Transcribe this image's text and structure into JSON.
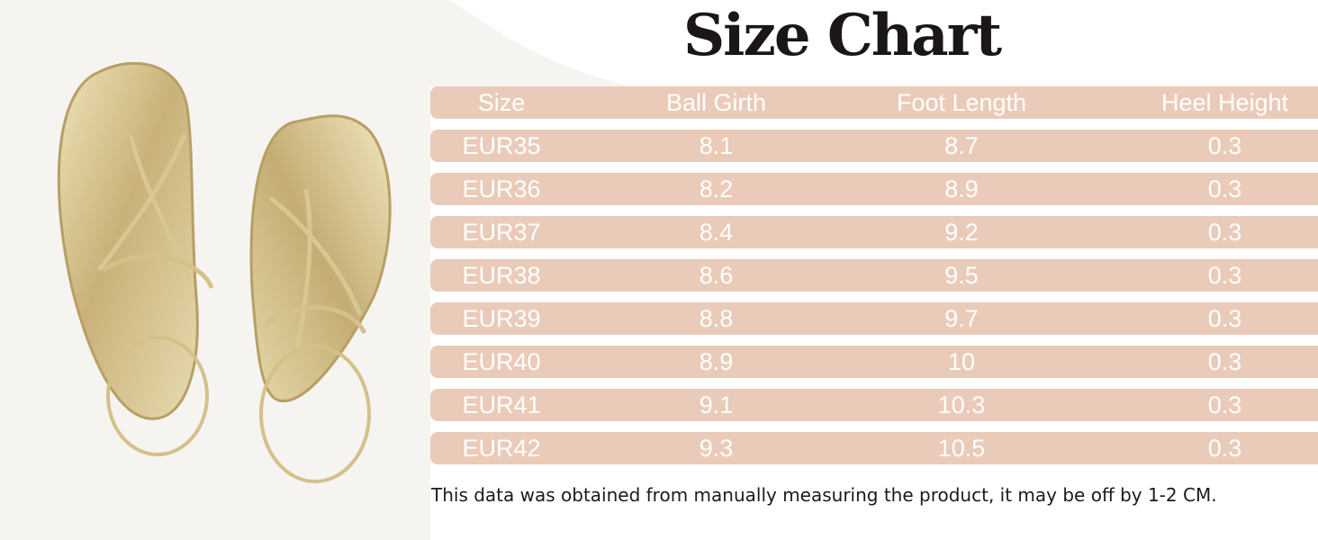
{
  "title": "Size Chart",
  "columns": [
    "Size",
    "Ball Girth",
    "Foot Length",
    "Heel Height"
  ],
  "rows": [
    [
      "EUR35",
      "8.1",
      "8.7",
      "0.3"
    ],
    [
      "EUR36",
      "8.2",
      "8.9",
      "0.3"
    ],
    [
      "EUR37",
      "8.4",
      "9.2",
      "0.3"
    ],
    [
      "EUR38",
      "8.6",
      "9.5",
      "0.3"
    ],
    [
      "EUR39",
      "8.8",
      "9.7",
      "0.3"
    ],
    [
      "EUR40",
      "8.9",
      "10",
      "0.3"
    ],
    [
      "EUR41",
      "9.1",
      "10.3",
      "0.3"
    ],
    [
      "EUR42",
      "9.3",
      "10.5",
      "0.3"
    ]
  ],
  "note": "This data was obtained from manually measuring the product, it may be off by 1-2 CM.",
  "colors": {
    "row_band": "#eacbb9",
    "cell_text": "#ffffff",
    "title": "#1a1716",
    "background": "#f6f4f1",
    "gold": "#cdb98a"
  },
  "image": {
    "subject": "gold strappy flat thong sandals"
  }
}
